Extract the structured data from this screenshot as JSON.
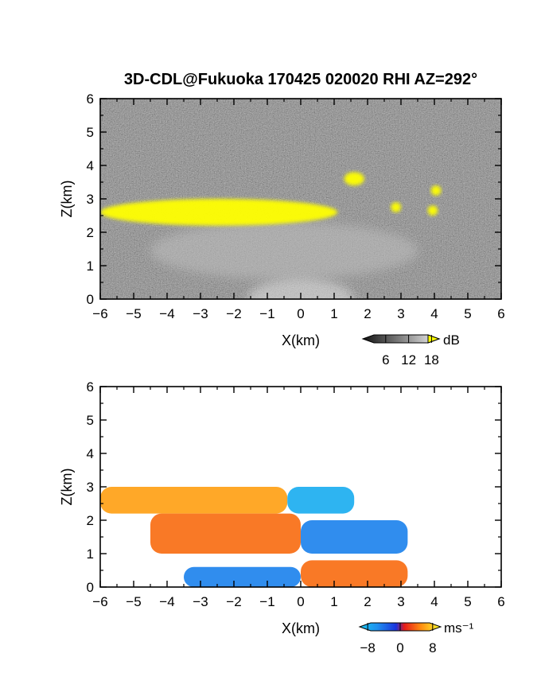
{
  "title": "3D-CDL@Fukuoka 170425 020020 RHI AZ=292°",
  "chart_data": [
    {
      "type": "heatmap",
      "name": "reflectivity",
      "xlabel": "X(km)",
      "ylabel": "Z(km)",
      "xlim": [
        -6,
        6
      ],
      "ylim": [
        0,
        6
      ],
      "xticks": [
        "−6",
        "−5",
        "−4",
        "−3",
        "−2",
        "−1",
        "0",
        "1",
        "2",
        "3",
        "4",
        "5",
        "6"
      ],
      "yticks": [
        "0",
        "1",
        "2",
        "3",
        "4",
        "5",
        "6"
      ],
      "colorbar": {
        "unit": "dB",
        "range": [
          0,
          20
        ],
        "ticks": [
          "6",
          "12",
          "18"
        ],
        "saturation_color": "#ffff00"
      },
      "background": "noise (dark gray)",
      "features": [
        {
          "label": "cloud base (yellow)",
          "x": [
            -6.0,
            1.1
          ],
          "z": [
            2.2,
            3.0
          ]
        },
        {
          "label": "cloud fragment",
          "x": [
            1.3,
            1.9
          ],
          "z": [
            3.4,
            3.8
          ]
        },
        {
          "label": "cloud fragment",
          "x": [
            2.7,
            3.0
          ],
          "z": [
            2.6,
            2.9
          ]
        },
        {
          "label": "cloud fragment",
          "x": [
            3.8,
            4.1
          ],
          "z": [
            2.5,
            2.8
          ]
        },
        {
          "label": "cloud fragment",
          "x": [
            3.9,
            4.2
          ],
          "z": [
            3.1,
            3.4
          ]
        },
        {
          "label": "aerosol layer (light gray)",
          "x": [
            -4.5,
            3.5
          ],
          "z": [
            0.6,
            2.3
          ]
        }
      ]
    },
    {
      "type": "heatmap",
      "name": "doppler_velocity",
      "xlabel": "X(km)",
      "ylabel": "Z(km)",
      "xlim": [
        -6,
        6
      ],
      "ylim": [
        0,
        6
      ],
      "xticks": [
        "−6",
        "−5",
        "−4",
        "−3",
        "−2",
        "−1",
        "0",
        "1",
        "2",
        "3",
        "4",
        "5",
        "6"
      ],
      "yticks": [
        "0",
        "1",
        "2",
        "3",
        "4",
        "5",
        "6"
      ],
      "colorbar": {
        "unit": "ms⁻¹",
        "range": [
          -10,
          10
        ],
        "ticks": [
          "−8",
          "0",
          "8"
        ]
      },
      "regions": [
        {
          "label": "upper layer, receding",
          "x": [
            -6.0,
            -0.4
          ],
          "z": [
            2.2,
            3.0
          ],
          "velocity": 6
        },
        {
          "label": "upper layer, approaching",
          "x": [
            -0.4,
            1.6
          ],
          "z": [
            2.2,
            3.0
          ],
          "velocity": -8
        },
        {
          "label": "middle layer, receding",
          "x": [
            -4.5,
            0.0
          ],
          "z": [
            1.0,
            2.2
          ],
          "velocity": 4
        },
        {
          "label": "middle layer, approaching",
          "x": [
            0.0,
            3.2
          ],
          "z": [
            1.0,
            2.0
          ],
          "velocity": -5
        },
        {
          "label": "lower layer, approaching",
          "x": [
            -3.5,
            0.0
          ],
          "z": [
            0.0,
            0.6
          ],
          "velocity": -5
        },
        {
          "label": "lower layer, receding",
          "x": [
            0.0,
            3.2
          ],
          "z": [
            0.0,
            0.8
          ],
          "velocity": 4
        }
      ]
    }
  ]
}
